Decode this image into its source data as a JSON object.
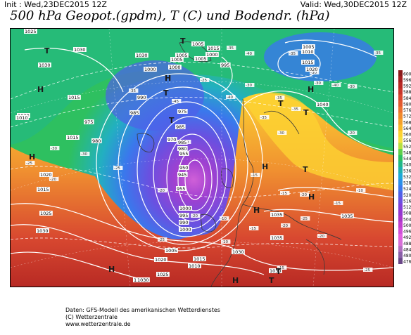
{
  "header": {
    "init": "Init : Wed,23DEC2015 12Z",
    "valid": "Valid: Wed,30DEC2015 12Z",
    "title": "500 hPa Geopot.(gpdm), T (C) und Bodendr. (hPa)"
  },
  "legend": {
    "levels": [
      "600",
      "596",
      "592",
      "588",
      "584",
      "580",
      "576",
      "572",
      "568",
      "564",
      "560",
      "556",
      "552",
      "548",
      "544",
      "540",
      "536",
      "532",
      "528",
      "524",
      "520",
      "516",
      "512",
      "508",
      "504",
      "500",
      "496",
      "492",
      "488",
      "484",
      "480",
      "476"
    ],
    "colors": [
      "#8b1a1a",
      "#a52020",
      "#b82a24",
      "#c8352a",
      "#d84830",
      "#e25a30",
      "#eb7230",
      "#f08a2c",
      "#f5a02a",
      "#f9b82a",
      "#fcd232",
      "#f3e040",
      "#b8e040",
      "#5fd04a",
      "#2ec060",
      "#22b888",
      "#1eb0b0",
      "#1ea8d8",
      "#2a90e8",
      "#3a78ec",
      "#5060e8",
      "#6a50e0",
      "#8040d8",
      "#9438d0",
      "#a838c8",
      "#c040d0",
      "#d050d8",
      "#e060e0",
      "#d870d8",
      "#b070c0",
      "#8a60a8",
      "#6a4888"
    ]
  },
  "map": {
    "pressure_labels": [
      {
        "text": "1025"
      },
      {
        "text": "1030"
      },
      {
        "text": "1030"
      },
      {
        "text": "1030"
      },
      {
        "text": "1005"
      },
      {
        "text": "1000"
      },
      {
        "text": "1005"
      },
      {
        "text": "995"
      },
      {
        "text": "1000"
      },
      {
        "text": "1010"
      },
      {
        "text": "1015"
      },
      {
        "text": "1005"
      },
      {
        "text": "1005"
      },
      {
        "text": "1000"
      },
      {
        "text": "1020"
      },
      {
        "text": "1015"
      },
      {
        "text": "990"
      },
      {
        "text": "985"
      },
      {
        "text": "975"
      },
      {
        "text": "980"
      },
      {
        "text": "985"
      },
      {
        "text": "975"
      },
      {
        "text": "970"
      },
      {
        "text": "1030"
      },
      {
        "text": "1015"
      },
      {
        "text": "1010"
      },
      {
        "text": "1040"
      },
      {
        "text": "1020"
      },
      {
        "text": "1015"
      },
      {
        "text": "1025"
      },
      {
        "text": "1030"
      },
      {
        "text": "1015"
      },
      {
        "text": "1020"
      },
      {
        "text": "1025"
      },
      {
        "text": "1030"
      },
      {
        "text": "1030"
      },
      {
        "text": "1035"
      },
      {
        "text": "1035"
      },
      {
        "text": "1035"
      },
      {
        "text": "1010"
      },
      {
        "text": "1030"
      },
      {
        "text": "1005"
      },
      {
        "text": "1015"
      },
      {
        "text": "1030"
      },
      {
        "text": "985"
      },
      {
        "text": "980"
      },
      {
        "text": "955"
      },
      {
        "text": "950"
      },
      {
        "text": "945"
      },
      {
        "text": "955"
      },
      {
        "text": "1000"
      },
      {
        "text": "995"
      },
      {
        "text": "990"
      },
      {
        "text": "1000"
      },
      {
        "text": "1005"
      }
    ],
    "temp_labels": [
      "-35",
      "-40",
      "-35",
      "-30",
      "-35",
      "-25",
      "-30",
      "-35",
      "-40",
      "-45",
      "-40",
      "-35",
      "-30",
      "-25",
      "-20",
      "-30",
      "-25",
      "-20",
      "-15",
      "-10",
      "-15",
      "-20",
      "-10",
      "-15",
      "-20",
      "-25",
      "-20",
      "-15",
      "-25",
      "-30",
      "-35",
      "-30",
      "-20",
      "-15",
      "-10",
      "-20",
      "-25",
      "-35",
      "-30",
      "-40"
    ],
    "centers": [
      {
        "label": "T"
      },
      {
        "label": "H"
      },
      {
        "label": "T"
      },
      {
        "label": "H"
      },
      {
        "label": "T"
      },
      {
        "label": "T"
      },
      {
        "label": "H"
      },
      {
        "label": "T"
      },
      {
        "label": "T"
      },
      {
        "label": "H"
      },
      {
        "label": "T"
      },
      {
        "label": "H"
      },
      {
        "label": "H"
      },
      {
        "label": "H"
      },
      {
        "label": "H"
      },
      {
        "label": "T"
      },
      {
        "label": "T"
      },
      {
        "label": "H"
      }
    ]
  },
  "footer": {
    "line1": "Daten: GFS-Modell des amerikanischen Wetterdienstes",
    "line2": "(C) Wetterzentrale",
    "line3": "www.wetterzentrale.de"
  }
}
